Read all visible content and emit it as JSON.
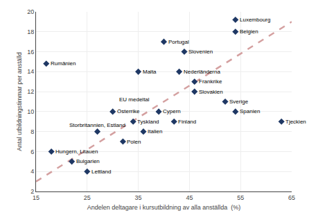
{
  "chart_data": {
    "type": "scatter",
    "xlabel": "Andelen deltagare i kursutbildning av alla anställda  (%)",
    "ylabel": "Antal utbildningstimmar per anställd",
    "xlim": [
      15,
      65
    ],
    "ylim": [
      2,
      20
    ],
    "xticks": [
      15,
      25,
      35,
      45,
      55,
      65
    ],
    "yticks": [
      2,
      4,
      6,
      8,
      10,
      12,
      14,
      16,
      18,
      20
    ],
    "grid": true,
    "series": [
      {
        "type": "line",
        "color": "#D4A0A0",
        "line_style": "dashed",
        "x": [
          15,
          65
        ],
        "values": [
          3.0,
          19.0
        ]
      },
      {
        "type": "scatter",
        "color": "#1F3864",
        "marker": "diamond",
        "x": [
          17,
          18,
          22,
          25,
          27,
          30,
          32,
          34,
          35,
          36,
          39,
          42,
          43,
          40,
          44,
          46,
          46,
          52,
          54,
          54,
          54,
          63
        ],
        "values": [
          14.8,
          6.0,
          5.0,
          4.0,
          8.0,
          10.0,
          7.0,
          9.0,
          14.0,
          8.0,
          10.0,
          9.0,
          14.0,
          17.0,
          16.0,
          13.0,
          12.0,
          11.0,
          10.0,
          18.0,
          19.2,
          9.0
        ],
        "labels": [
          "Rumänien",
          "Hungern, Litauen",
          "Bulgarien",
          "Lettland",
          "Storbritannien, Estland",
          "Österrike",
          "Polen",
          "Tyskland",
          "Malta",
          "Italien",
          "Cypern",
          "Finland",
          "Nederländerna",
          "Portugal",
          "Slovenien",
          "Frankrike",
          "Slovakien",
          "Sverige",
          "Spanien",
          "Belgien",
          "Luxembourg",
          "Tjeckien"
        ]
      }
    ],
    "annotations": [
      {
        "text": "EU medeltal",
        "x": 31,
        "y": 11.2
      }
    ]
  }
}
